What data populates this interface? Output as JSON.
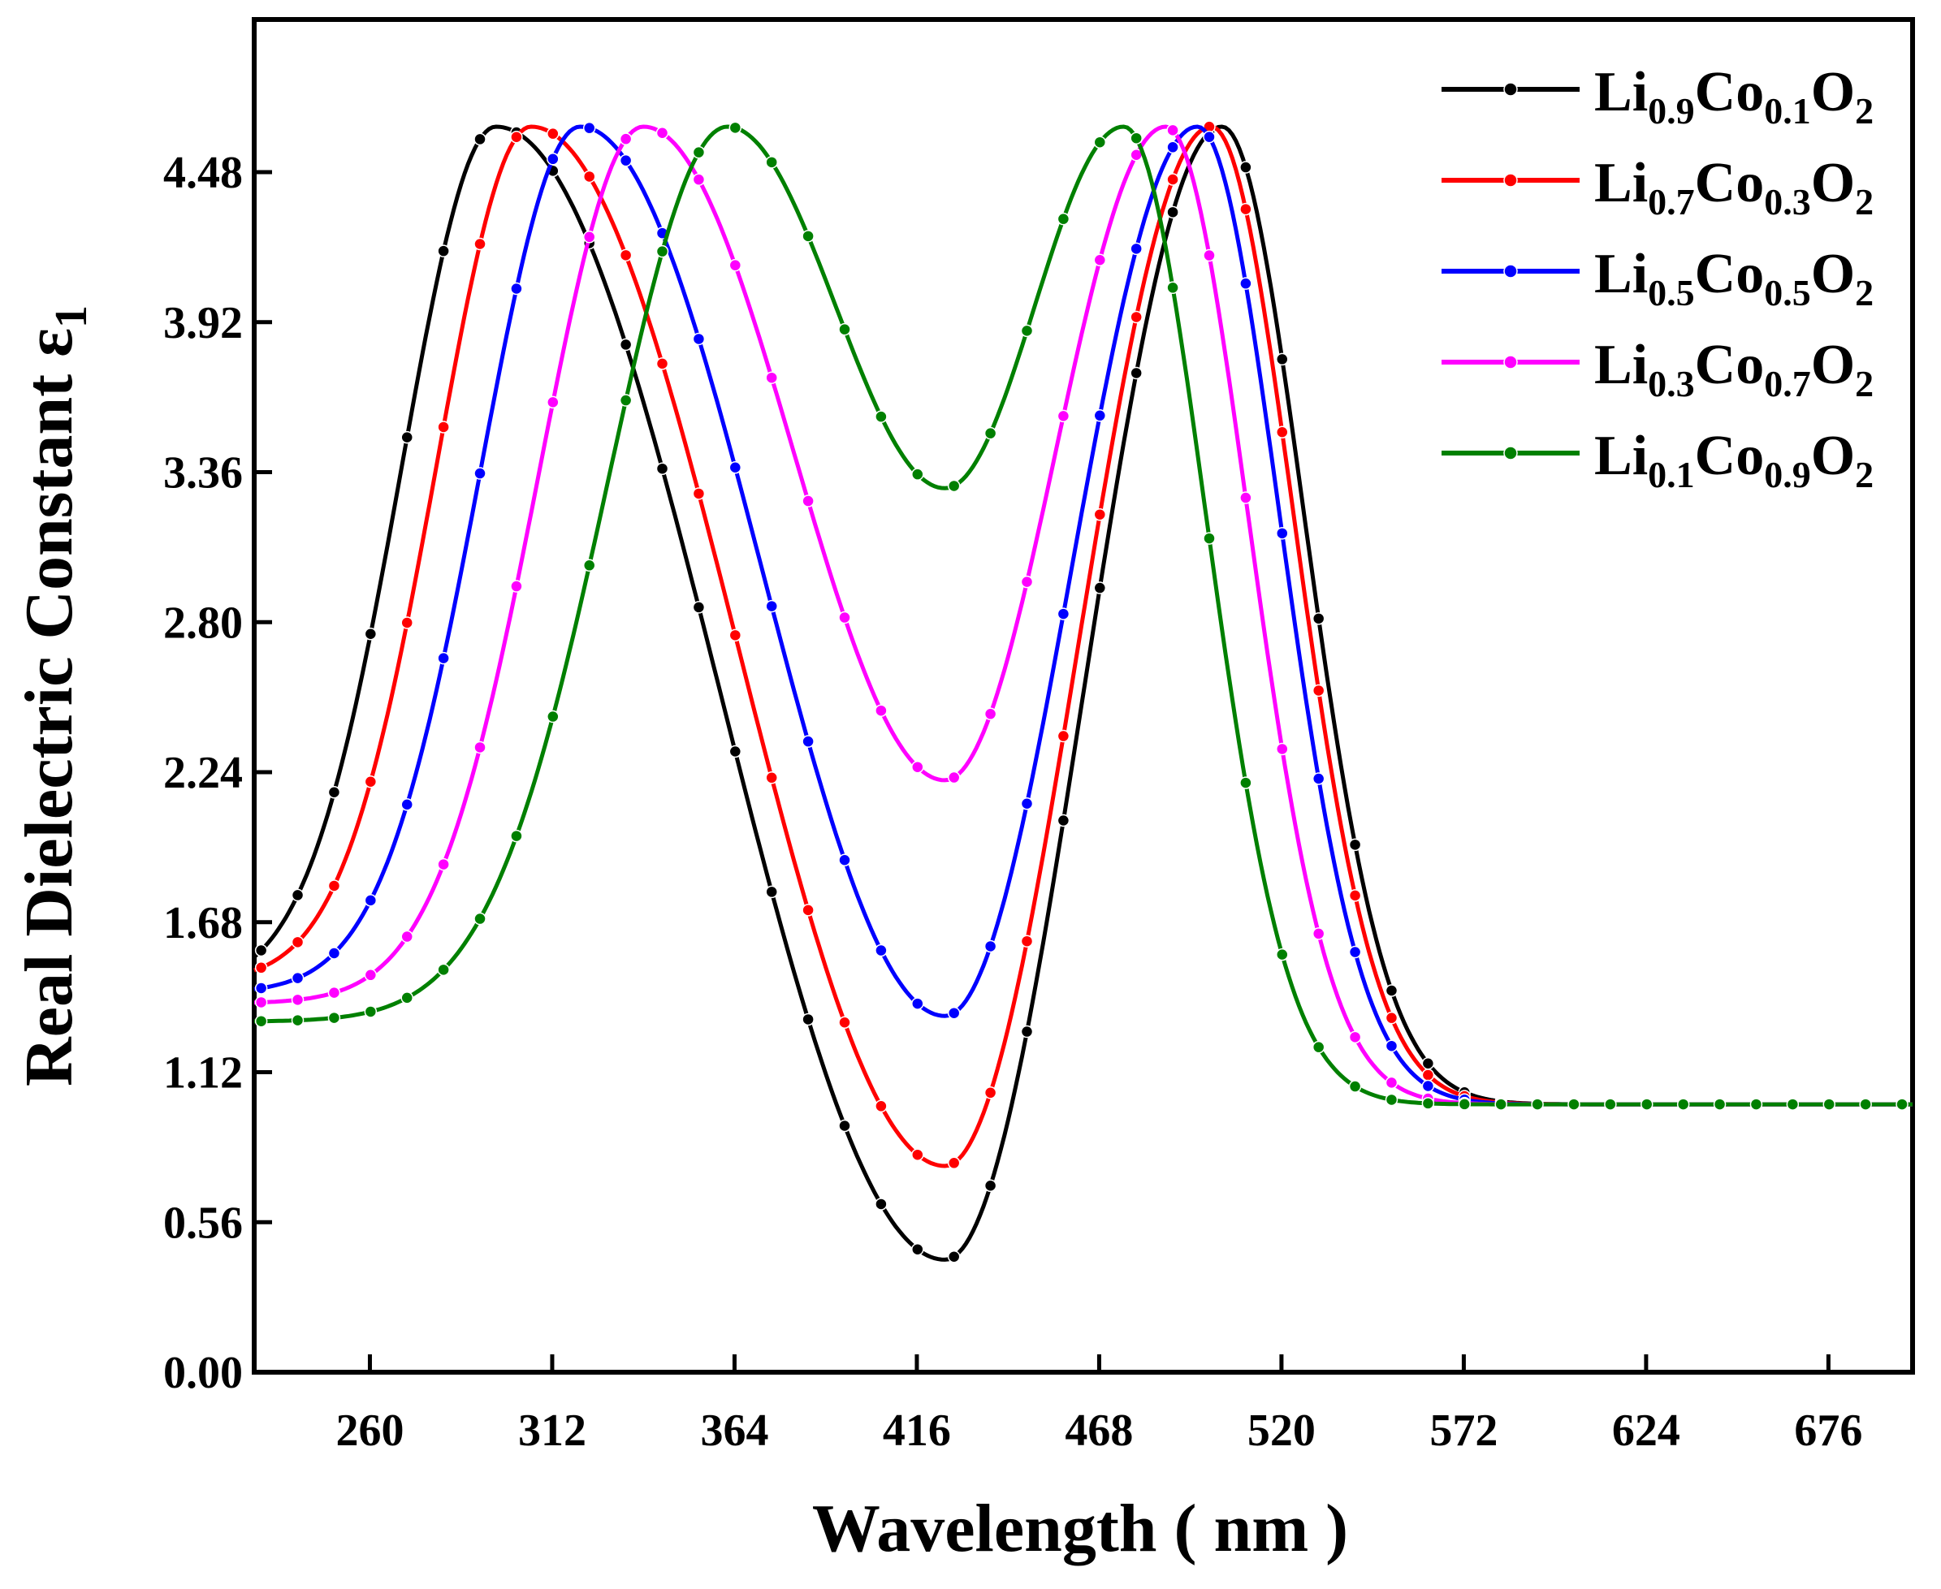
{
  "chart_data": {
    "type": "line",
    "title": "",
    "xlabel": "Wavelength ( nm )",
    "ylabel": "Real Dielectric Constant  ε",
    "ylabel_sub": "1",
    "xlim": [
      227,
      700
    ],
    "ylim": [
      0,
      5.05
    ],
    "xticks": [
      260,
      312,
      364,
      416,
      468,
      520,
      572,
      624,
      676
    ],
    "xtick_labels": [
      "260",
      "312",
      "364",
      "416",
      "468",
      "520",
      "572",
      "624",
      "676"
    ],
    "yticks": [
      0.0,
      0.56,
      1.12,
      1.68,
      2.24,
      2.8,
      3.36,
      3.92,
      4.48
    ],
    "ytick_labels": [
      "0.00",
      "0.56",
      "1.12",
      "1.68",
      "2.24",
      "2.80",
      "3.36",
      "3.92",
      "4.48"
    ],
    "grid": false,
    "legend_position": "top-right",
    "series": [
      {
        "name": "Li0.9Co0.1O2",
        "legend": {
          "a": "Li",
          "s1": "0.9",
          "b": "Co",
          "s2": "0.1",
          "c": "O",
          "s3": "2"
        },
        "color": "#000000",
        "params": {
          "peak1": 296,
          "peak2": 503,
          "valley": 0.42,
          "left_min": 1.55,
          "w_left": 38,
          "w_right": 33
        }
      },
      {
        "name": "Li0.7Co0.3O2",
        "legend": {
          "a": "Li",
          "s1": "0.7",
          "b": "Co",
          "s2": "0.3",
          "c": "O",
          "s3": "2"
        },
        "color": "#ff0000",
        "params": {
          "peak1": 306,
          "peak2": 500,
          "valley": 0.77,
          "left_min": 1.5,
          "w_left": 38,
          "w_right": 33
        }
      },
      {
        "name": "Li0.5Co0.5O2",
        "legend": {
          "a": "Li",
          "s1": "0.5",
          "b": "Co",
          "s2": "0.5",
          "c": "O",
          "s3": "2"
        },
        "color": "#0000ff",
        "params": {
          "peak1": 320,
          "peak2": 496,
          "valley": 1.33,
          "left_min": 1.43,
          "w_left": 40,
          "w_right": 33
        }
      },
      {
        "name": "Li0.3Co0.7O2",
        "legend": {
          "a": "Li",
          "s1": "0.3",
          "b": "Co",
          "s2": "0.7",
          "c": "O",
          "s3": "2"
        },
        "color": "#ff00ff",
        "params": {
          "peak1": 338,
          "peak2": 487,
          "valley": 2.21,
          "left_min": 1.38,
          "w_left": 42,
          "w_right": 33
        }
      },
      {
        "name": "Li0.1Co0.9O2",
        "legend": {
          "a": "Li",
          "s1": "0.1",
          "b": "Co",
          "s2": "0.9",
          "c": "O",
          "s3": "2"
        },
        "color": "#008000",
        "params": {
          "peak1": 362,
          "peak2": 475,
          "valley": 3.3,
          "left_min": 1.31,
          "w_left": 48,
          "w_right": 33
        }
      }
    ],
    "peak_value": 4.65,
    "valley_wavelength": 424,
    "baseline": 1.0
  }
}
